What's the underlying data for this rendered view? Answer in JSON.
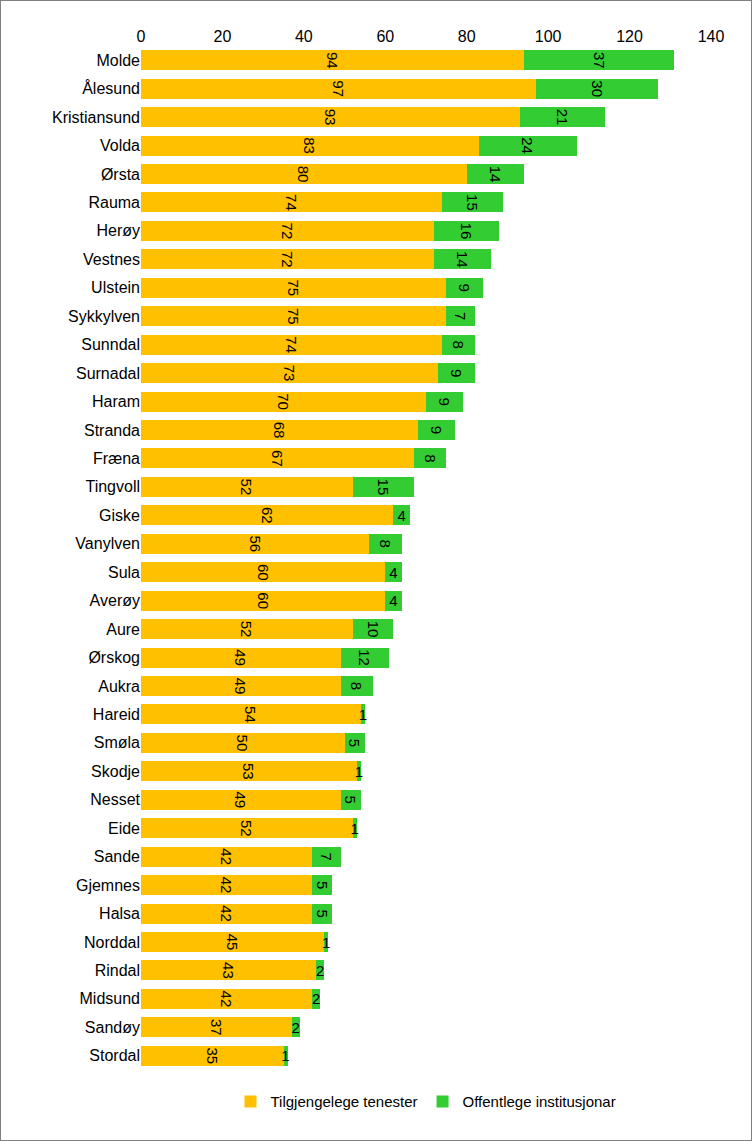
{
  "chart_data": {
    "type": "bar",
    "orientation": "horizontal",
    "stacked": true,
    "data_labels": true,
    "grid": false,
    "legend": "bottom",
    "categories": [
      "Molde",
      "Ålesund",
      "Kristiansund",
      "Volda",
      "Ørsta",
      "Rauma",
      "Herøy",
      "Vestnes",
      "Ulstein",
      "Sykkylven",
      "Sunndal",
      "Surnadal",
      "Haram",
      "Stranda",
      "Fræna",
      "Tingvoll",
      "Giske",
      "Vanylven",
      "Sula",
      "Averøy",
      "Aure",
      "Ørskog",
      "Aukra",
      "Hareid",
      "Smøla",
      "Skodje",
      "Nesset",
      "Eide",
      "Sande",
      "Gjemnes",
      "Halsa",
      "Norddal",
      "Rindal",
      "Midsund",
      "Sandøy",
      "Stordal"
    ],
    "series": [
      {
        "name": "Tilgjengelege tenester",
        "color": "#FFC000",
        "values": [
          94,
          97,
          93,
          83,
          80,
          74,
          72,
          72,
          75,
          75,
          74,
          73,
          70,
          68,
          67,
          52,
          62,
          56,
          60,
          60,
          52,
          49,
          49,
          54,
          50,
          53,
          49,
          52,
          42,
          42,
          42,
          45,
          43,
          42,
          37,
          35
        ]
      },
      {
        "name": "Offentlege institusjonar",
        "color": "#33CC33",
        "values": [
          37,
          30,
          21,
          24,
          14,
          15,
          16,
          14,
          9,
          7,
          8,
          9,
          9,
          9,
          8,
          15,
          4,
          8,
          4,
          4,
          10,
          12,
          8,
          1,
          5,
          1,
          5,
          1,
          7,
          5,
          5,
          1,
          2,
          2,
          2,
          1
        ]
      }
    ],
    "xlim": [
      0,
      140
    ],
    "xticks": [
      0,
      20,
      40,
      60,
      80,
      100,
      120,
      140
    ]
  }
}
